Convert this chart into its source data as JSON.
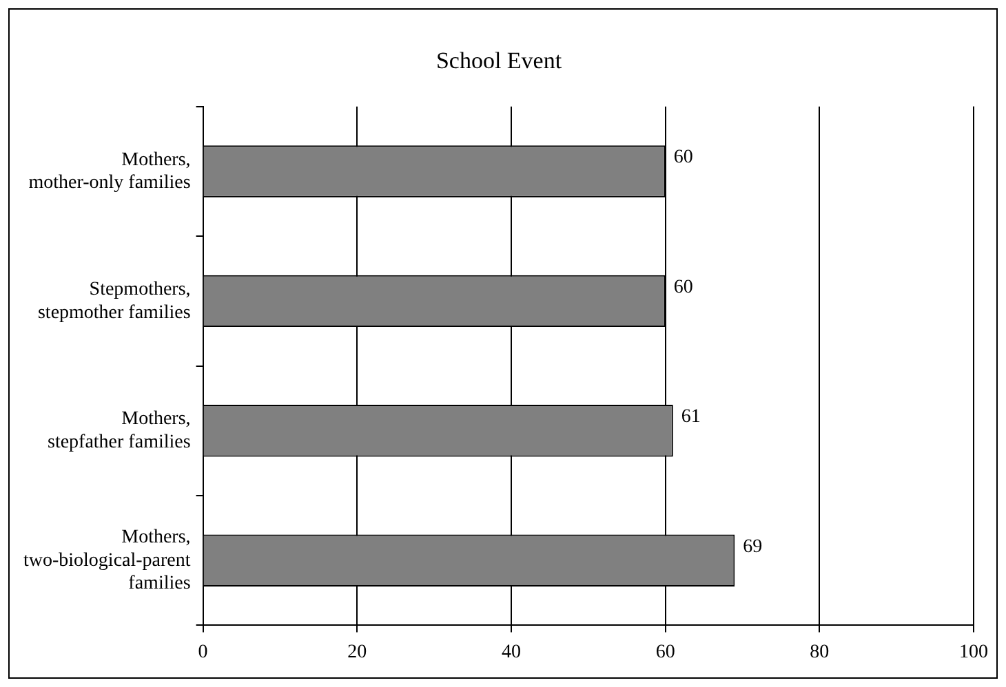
{
  "chart_data": {
    "type": "bar",
    "orientation": "horizontal",
    "title": "School Event",
    "categories": [
      "Mothers, mother-only families",
      "Stepmothers, stepmother families",
      "Mothers, stepfather families",
      "Mothers, two-biological-parent families"
    ],
    "values": [
      60,
      60,
      61,
      69
    ],
    "color": "#808080",
    "xlim": [
      0,
      100
    ],
    "xticks": [
      0,
      20,
      40,
      60,
      80,
      100
    ],
    "grid": "x",
    "data_labels": true,
    "legend": false
  }
}
